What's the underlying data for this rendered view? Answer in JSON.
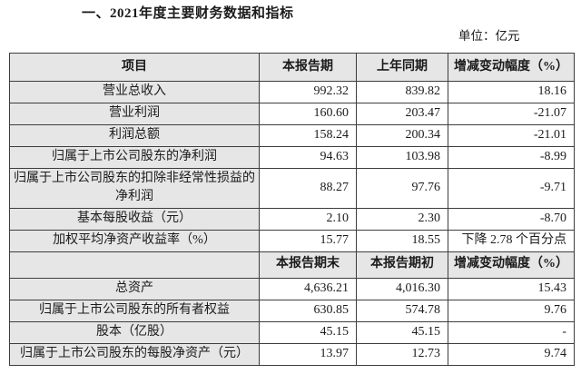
{
  "page": {
    "title": "一、2021年度主要财务数据和指标",
    "unit_label": "单位：亿元"
  },
  "colors": {
    "header_bg": "#e6e6e6",
    "border": "#3d3d3d",
    "text": "#1b1b1b"
  },
  "table": {
    "rows": [
      {
        "header": true,
        "cells": [
          "项目",
          "本报告期",
          "上年同期",
          "增减变动幅度（%）"
        ]
      },
      {
        "header": false,
        "label": "营业总收入",
        "current": "992.32",
        "prior": "839.82",
        "change": "18.16"
      },
      {
        "header": false,
        "label": "营业利润",
        "current": "160.60",
        "prior": "203.47",
        "change": "-21.07"
      },
      {
        "header": false,
        "label": "利润总额",
        "current": "158.24",
        "prior": "200.34",
        "change": "-21.01"
      },
      {
        "header": false,
        "label": "归属于上市公司股东的净利润",
        "current": "94.63",
        "prior": "103.98",
        "change": "-8.99"
      },
      {
        "header": false,
        "label": "归属于上市公司股东的扣除非经常性损益的净利润",
        "current": "88.27",
        "prior": "97.76",
        "change": "-9.71"
      },
      {
        "header": false,
        "label": "基本每股收益（元）",
        "current": "2.10",
        "prior": "2.30",
        "change": "-8.70"
      },
      {
        "header": false,
        "label": "加权平均净资产收益率（%）",
        "current": "15.77",
        "prior": "18.55",
        "change": "下降 2.78 个百分点"
      },
      {
        "header": true,
        "cells": [
          "",
          "本报告期末",
          "本报告期初",
          "增减变动幅度（%）"
        ]
      },
      {
        "header": false,
        "label": "总资产",
        "current": "4,636.21",
        "prior": "4,016.30",
        "change": "15.43"
      },
      {
        "header": false,
        "label": "归属于上市公司股东的所有者权益",
        "current": "630.85",
        "prior": "574.78",
        "change": "9.76"
      },
      {
        "header": false,
        "label": "股本（亿股）",
        "current": "45.15",
        "prior": "45.15",
        "change": "-"
      },
      {
        "header": false,
        "label": "归属于上市公司股东的每股净资产（元）",
        "current": "13.97",
        "prior": "12.73",
        "change": "9.74"
      }
    ]
  }
}
